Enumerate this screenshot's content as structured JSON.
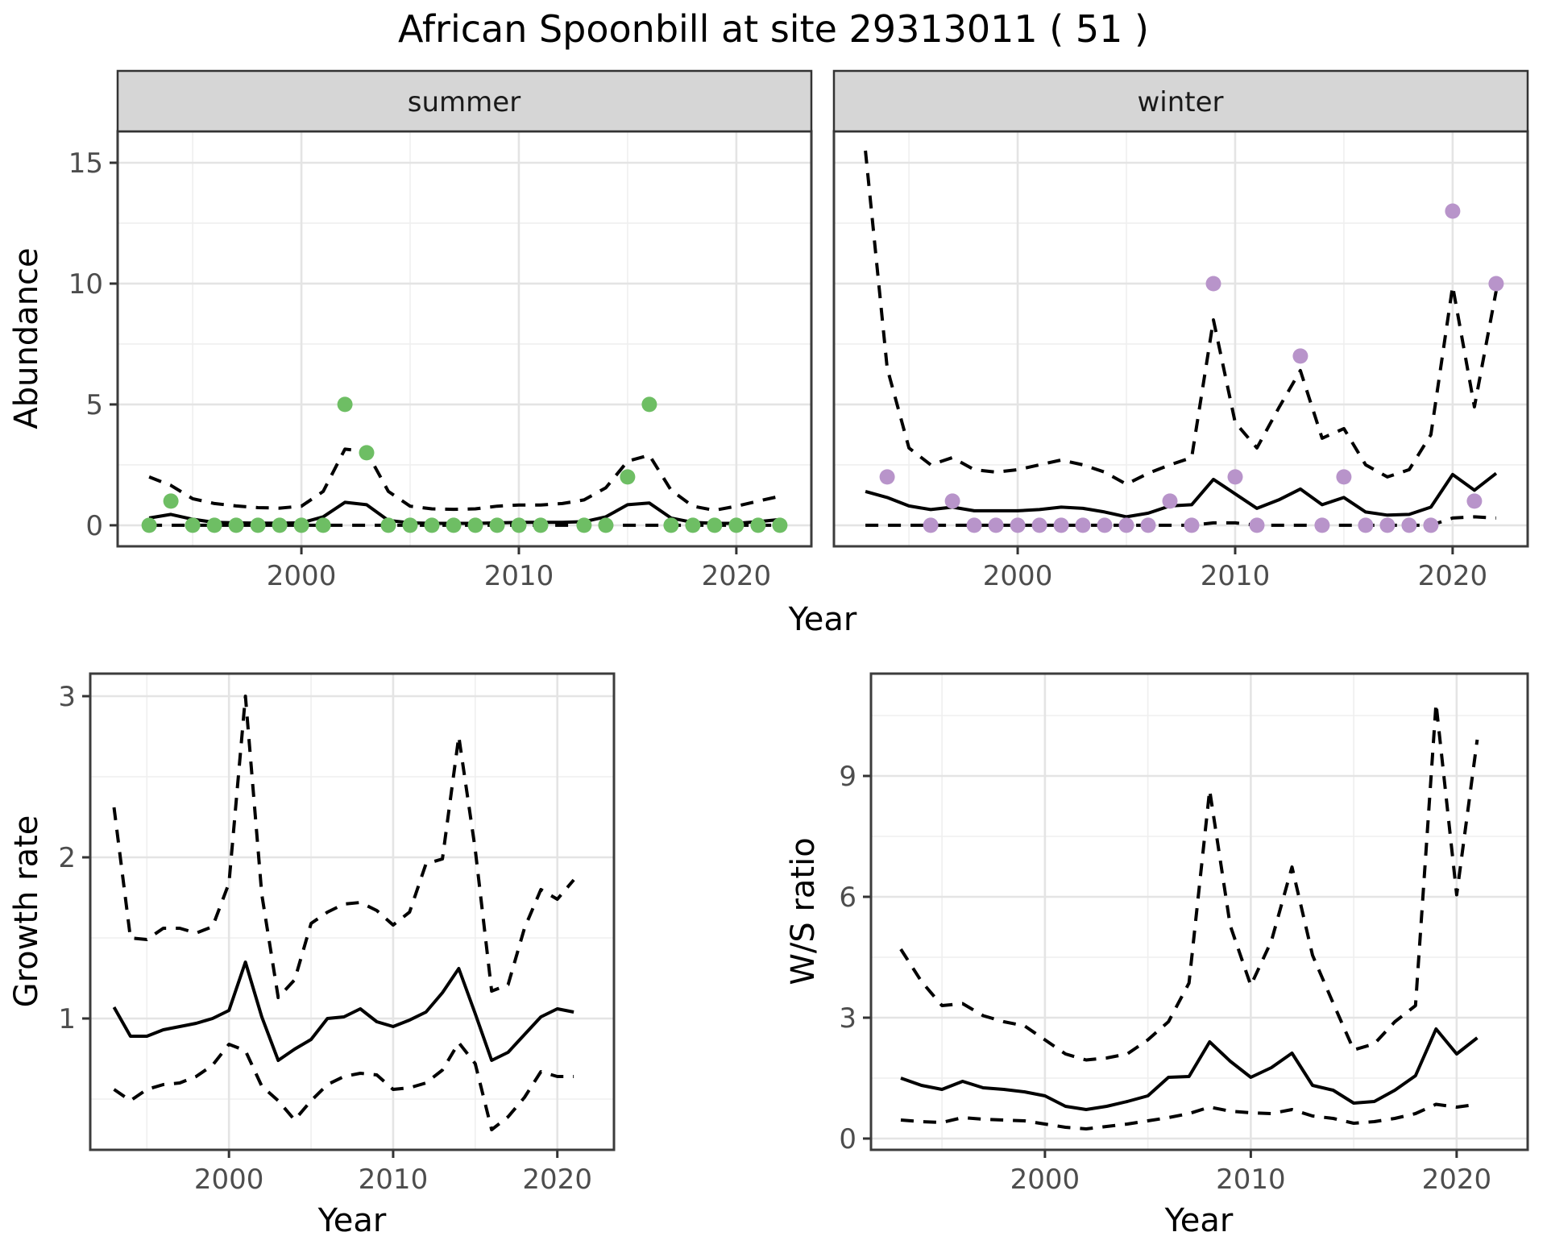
{
  "title": "African Spoonbill at site 29313011 ( 51 )",
  "abundance_plot": {
    "ylabel": "Abundance",
    "xlabel": "Year",
    "facets": [
      {
        "label": "summer"
      },
      {
        "label": "winter"
      }
    ]
  },
  "growth_plot": {
    "ylabel": "Growth rate",
    "xlabel": "Year"
  },
  "ratio_plot": {
    "ylabel": "W/S ratio",
    "xlabel": "Year"
  },
  "colors": {
    "summer_point": "#6ebe64",
    "winter_point": "#b894ca",
    "line": "#000000",
    "grid_major": "#e4e4e4",
    "grid_minor": "#efefef",
    "panel_border": "#3c3c3c",
    "strip_bg": "#d6d6d6",
    "axis_text": "#4d4d4d",
    "tick_mark": "#333333"
  },
  "chart_data": [
    {
      "id": "abundance-summer",
      "type": "line",
      "facet": "summer",
      "x": [
        1993,
        1994,
        1995,
        1996,
        1997,
        1998,
        1999,
        2000,
        2001,
        2002,
        2003,
        2004,
        2005,
        2006,
        2007,
        2008,
        2009,
        2010,
        2011,
        2012,
        2013,
        2014,
        2015,
        2016,
        2017,
        2018,
        2019,
        2020,
        2021,
        2022
      ],
      "points": [
        0,
        1,
        0,
        0,
        0,
        0,
        0,
        0,
        0,
        5,
        3,
        0,
        0,
        0,
        0,
        0,
        0,
        0,
        0,
        null,
        0,
        0,
        2,
        5,
        0,
        0,
        0,
        0,
        0,
        0
      ],
      "series": [
        {
          "name": "mean",
          "style": "solid",
          "values": [
            0.3,
            0.45,
            0.25,
            0.12,
            0.1,
            0.09,
            0.09,
            0.1,
            0.35,
            0.95,
            0.85,
            0.2,
            0.1,
            0.08,
            0.08,
            0.08,
            0.1,
            0.12,
            0.12,
            0.12,
            0.15,
            0.35,
            0.85,
            0.92,
            0.3,
            0.12,
            0.08,
            0.08,
            0.15,
            0.24
          ]
        },
        {
          "name": "upper_95ci",
          "style": "dashed",
          "values": [
            2.0,
            1.65,
            1.1,
            0.9,
            0.8,
            0.73,
            0.71,
            0.79,
            1.4,
            3.15,
            3.05,
            1.4,
            0.79,
            0.68,
            0.66,
            0.68,
            0.79,
            0.84,
            0.84,
            0.9,
            1.05,
            1.55,
            2.65,
            2.9,
            1.45,
            0.79,
            0.62,
            0.79,
            1.0,
            1.2
          ]
        },
        {
          "name": "lower_95ci",
          "style": "dashed",
          "values": [
            0,
            0,
            0,
            0,
            0,
            0,
            0,
            0,
            0,
            0,
            0,
            0,
            0,
            0,
            0,
            0,
            0,
            0,
            0,
            0,
            0,
            0,
            0,
            0,
            0,
            0,
            0,
            0,
            0,
            0
          ]
        }
      ],
      "xlim": [
        1991.55,
        2023.45
      ],
      "ylim": [
        -0.87,
        16.3
      ],
      "x_ticks": [
        2000,
        2010,
        2020
      ],
      "x_minor": [
        1995,
        2005,
        2015
      ],
      "y_ticks": [
        0,
        5,
        10,
        15
      ],
      "y_minor": [
        2.5,
        7.5,
        12.5
      ],
      "point_color": "#6ebe64"
    },
    {
      "id": "abundance-winter",
      "type": "line",
      "facet": "winter",
      "x": [
        1993,
        1994,
        1995,
        1996,
        1997,
        1998,
        1999,
        2000,
        2001,
        2002,
        2003,
        2004,
        2005,
        2006,
        2007,
        2008,
        2009,
        2010,
        2011,
        2012,
        2013,
        2014,
        2015,
        2016,
        2017,
        2018,
        2019,
        2020,
        2021,
        2022
      ],
      "points": [
        null,
        2,
        null,
        0,
        1,
        0,
        0,
        0,
        0,
        0,
        0,
        0,
        0,
        0,
        1,
        0,
        10,
        2,
        0,
        null,
        7,
        0,
        2,
        0,
        0,
        0,
        0,
        13,
        1,
        10
      ],
      "series": [
        {
          "name": "mean",
          "style": "solid",
          "values": [
            1.4,
            1.15,
            0.8,
            0.65,
            0.75,
            0.6,
            0.6,
            0.6,
            0.65,
            0.75,
            0.7,
            0.55,
            0.35,
            0.5,
            0.8,
            0.85,
            1.9,
            1.3,
            0.7,
            1.05,
            1.5,
            0.85,
            1.15,
            0.55,
            0.42,
            0.45,
            0.75,
            2.1,
            1.45,
            2.15
          ]
        },
        {
          "name": "upper_95ci",
          "style": "dashed",
          "values": [
            15.5,
            6.5,
            3.2,
            2.5,
            2.8,
            2.3,
            2.2,
            2.3,
            2.5,
            2.7,
            2.5,
            2.2,
            1.7,
            2.15,
            2.5,
            2.8,
            8.5,
            4.25,
            3.2,
            4.85,
            6.4,
            3.6,
            4.0,
            2.5,
            2.0,
            2.3,
            3.75,
            9.9,
            4.9,
            9.7
          ]
        },
        {
          "name": "lower_95ci",
          "style": "dashed",
          "values": [
            0,
            0,
            0,
            0,
            0,
            0,
            0,
            0,
            0,
            0,
            0,
            0,
            0,
            0,
            0,
            0,
            0.1,
            0.1,
            0,
            0,
            0,
            0,
            0,
            0,
            0,
            0,
            0,
            0.3,
            0.35,
            0.3
          ]
        }
      ],
      "xlim": [
        1991.55,
        2023.45
      ],
      "ylim": [
        -0.87,
        16.3
      ],
      "x_ticks": [
        2000,
        2010,
        2020
      ],
      "x_minor": [
        1995,
        2005,
        2015
      ],
      "y_ticks": [
        0,
        5,
        10,
        15
      ],
      "y_minor": [
        2.5,
        7.5,
        12.5
      ],
      "point_color": "#b894ca"
    },
    {
      "id": "growth-rate",
      "type": "line",
      "x": [
        1993,
        1994,
        1995,
        1996,
        1997,
        1998,
        1999,
        2000,
        2001,
        2002,
        2003,
        2004,
        2005,
        2006,
        2007,
        2008,
        2009,
        2010,
        2011,
        2012,
        2013,
        2014,
        2015,
        2016,
        2017,
        2018,
        2019,
        2020,
        2021
      ],
      "series": [
        {
          "name": "mean",
          "style": "solid",
          "values": [
            1.07,
            0.89,
            0.89,
            0.93,
            0.95,
            0.97,
            1.0,
            1.05,
            1.35,
            1.01,
            0.74,
            0.81,
            0.87,
            1.0,
            1.01,
            1.06,
            0.98,
            0.95,
            0.99,
            1.04,
            1.16,
            1.31,
            1.03,
            0.74,
            0.79,
            0.9,
            1.01,
            1.06,
            1.04
          ]
        },
        {
          "name": "upper_95ci",
          "style": "dashed",
          "values": [
            2.31,
            1.5,
            1.49,
            1.56,
            1.56,
            1.53,
            1.57,
            1.84,
            3.0,
            1.77,
            1.13,
            1.24,
            1.59,
            1.66,
            1.71,
            1.72,
            1.67,
            1.58,
            1.66,
            1.96,
            1.99,
            2.75,
            2.05,
            1.17,
            1.21,
            1.56,
            1.8,
            1.74,
            1.86
          ]
        },
        {
          "name": "lower_95ci",
          "style": "dashed",
          "values": [
            0.56,
            0.49,
            0.56,
            0.59,
            0.6,
            0.64,
            0.71,
            0.84,
            0.8,
            0.58,
            0.49,
            0.37,
            0.49,
            0.59,
            0.64,
            0.66,
            0.65,
            0.56,
            0.57,
            0.6,
            0.68,
            0.85,
            0.72,
            0.31,
            0.39,
            0.51,
            0.67,
            0.64,
            0.64
          ]
        }
      ],
      "xlim": [
        1991.55,
        2023.45
      ],
      "ylim": [
        0.185,
        3.14
      ],
      "x_ticks": [
        2000,
        2010,
        2020
      ],
      "x_minor": [
        1995,
        2005,
        2015
      ],
      "y_ticks": [
        1,
        2,
        3
      ],
      "y_minor": [
        0.5,
        1.5,
        2.5
      ]
    },
    {
      "id": "ws-ratio",
      "type": "line",
      "x": [
        1993,
        1994,
        1995,
        1996,
        1997,
        1998,
        1999,
        2000,
        2001,
        2002,
        2003,
        2004,
        2005,
        2006,
        2007,
        2008,
        2009,
        2010,
        2011,
        2012,
        2013,
        2014,
        2015,
        2016,
        2017,
        2018,
        2019,
        2020,
        2021
      ],
      "series": [
        {
          "name": "mean",
          "style": "solid",
          "values": [
            1.5,
            1.32,
            1.22,
            1.42,
            1.26,
            1.22,
            1.16,
            1.06,
            0.8,
            0.72,
            0.8,
            0.92,
            1.06,
            1.52,
            1.54,
            2.4,
            1.92,
            1.52,
            1.76,
            2.12,
            1.32,
            1.2,
            0.88,
            0.92,
            1.2,
            1.56,
            2.72,
            2.1,
            2.5
          ]
        },
        {
          "name": "upper_95ci",
          "style": "dashed",
          "values": [
            4.7,
            3.9,
            3.3,
            3.35,
            3.05,
            2.9,
            2.8,
            2.45,
            2.1,
            1.95,
            2.0,
            2.1,
            2.45,
            2.9,
            3.86,
            8.65,
            5.29,
            3.8,
            4.9,
            6.74,
            4.55,
            3.36,
            2.2,
            2.35,
            2.9,
            3.3,
            10.8,
            6.05,
            9.9
          ]
        },
        {
          "name": "lower_95ci",
          "style": "dashed",
          "values": [
            0.46,
            0.42,
            0.4,
            0.52,
            0.48,
            0.46,
            0.44,
            0.36,
            0.28,
            0.24,
            0.3,
            0.36,
            0.44,
            0.52,
            0.62,
            0.78,
            0.68,
            0.64,
            0.62,
            0.72,
            0.56,
            0.5,
            0.38,
            0.42,
            0.5,
            0.62,
            0.85,
            0.78,
            0.85
          ]
        }
      ],
      "xlim": [
        1991.55,
        2023.45
      ],
      "ylim": [
        -0.28,
        11.54
      ],
      "x_ticks": [
        2000,
        2010,
        2020
      ],
      "x_minor": [
        1995,
        2005,
        2015
      ],
      "y_ticks": [
        0,
        3,
        6,
        9
      ],
      "y_minor": [
        1.5,
        4.5,
        7.5,
        10.5
      ]
    }
  ]
}
